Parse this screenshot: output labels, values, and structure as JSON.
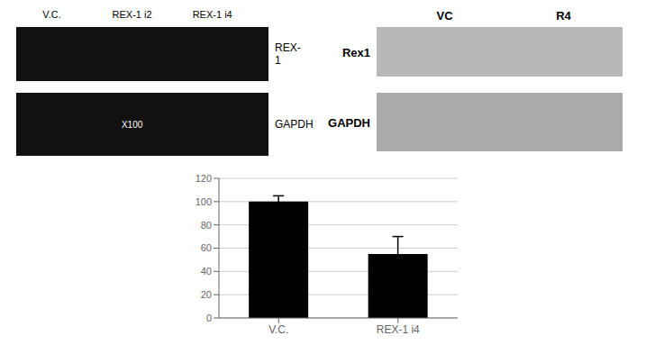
{
  "chart_data": {
    "type": "bar",
    "categories": [
      "V.C.",
      "REX-1 i4"
    ],
    "values": [
      100,
      55
    ],
    "errors": [
      5,
      15
    ],
    "color": "#000000",
    "ylim": [
      0,
      120
    ],
    "yticks": [
      0,
      20,
      40,
      60,
      80,
      100,
      120
    ],
    "grid": true,
    "annotations": [
      "V.C.",
      "REX-1 i2",
      "REX-1 i4",
      "REX-1",
      "GAPDH",
      "X100",
      "VC",
      "R4",
      "Rex1",
      "GAPDH"
    ]
  }
}
